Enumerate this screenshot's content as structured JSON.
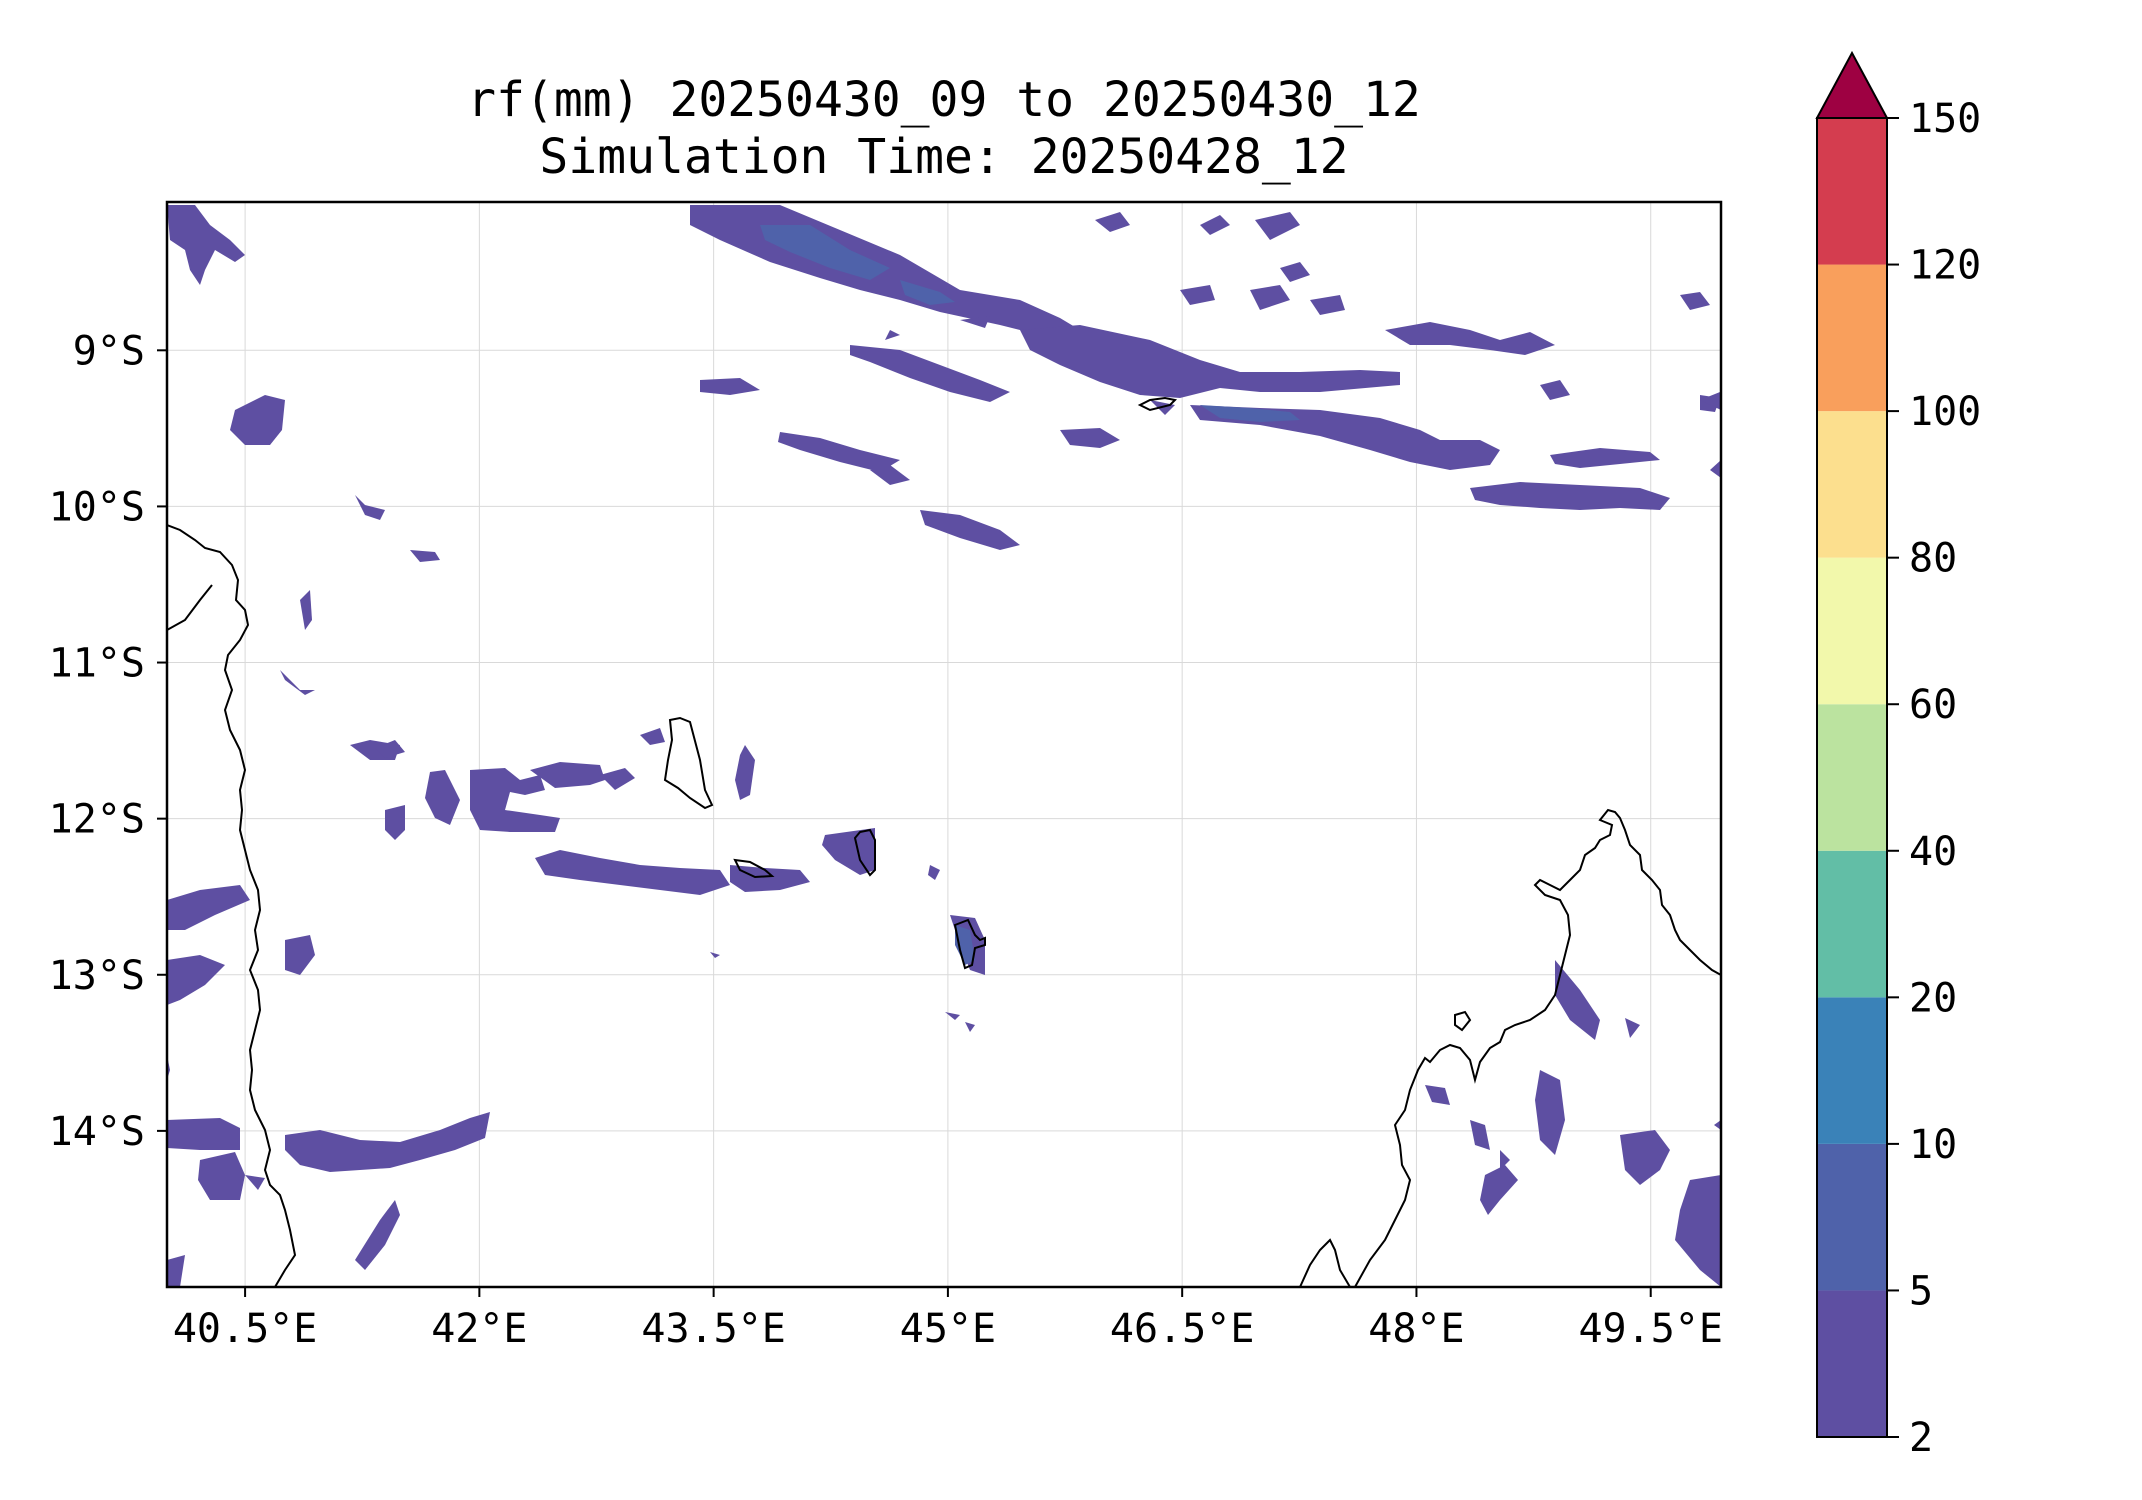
{
  "title": {
    "line1": "rf(mm) 20250430_09 to 20250430_12",
    "line2": "Simulation Time: 20250428_12"
  },
  "map": {
    "variable": "rf(mm)",
    "lon_range": [
      40.0,
      49.95
    ],
    "lat_range": [
      -15.0,
      -8.05
    ],
    "gridlines": true,
    "x_ticks": [
      "40.5°E",
      "42°E",
      "43.5°E",
      "45°E",
      "46.5°E",
      "48°E",
      "49.5°E"
    ],
    "x_tick_values": [
      40.5,
      42.0,
      43.5,
      45.0,
      46.5,
      48.0,
      49.5
    ],
    "y_ticks": [
      "9°S",
      "10°S",
      "11°S",
      "12°S",
      "13°S",
      "14°S"
    ],
    "y_tick_values": [
      -9,
      -10,
      -11,
      -12,
      -13,
      -14
    ]
  },
  "colorbar": {
    "levels": [
      "2",
      "5",
      "10",
      "20",
      "40",
      "60",
      "80",
      "100",
      "120",
      "150"
    ],
    "colors": [
      "#5e4fa2",
      "#4f62aa",
      "#3a82b8",
      "#62bea6",
      "#bbe39f",
      "#f2f8ab",
      "#fcdf8e",
      "#f99f5c",
      "#d43d4f",
      "#9e0142"
    ],
    "extend": "max"
  }
}
